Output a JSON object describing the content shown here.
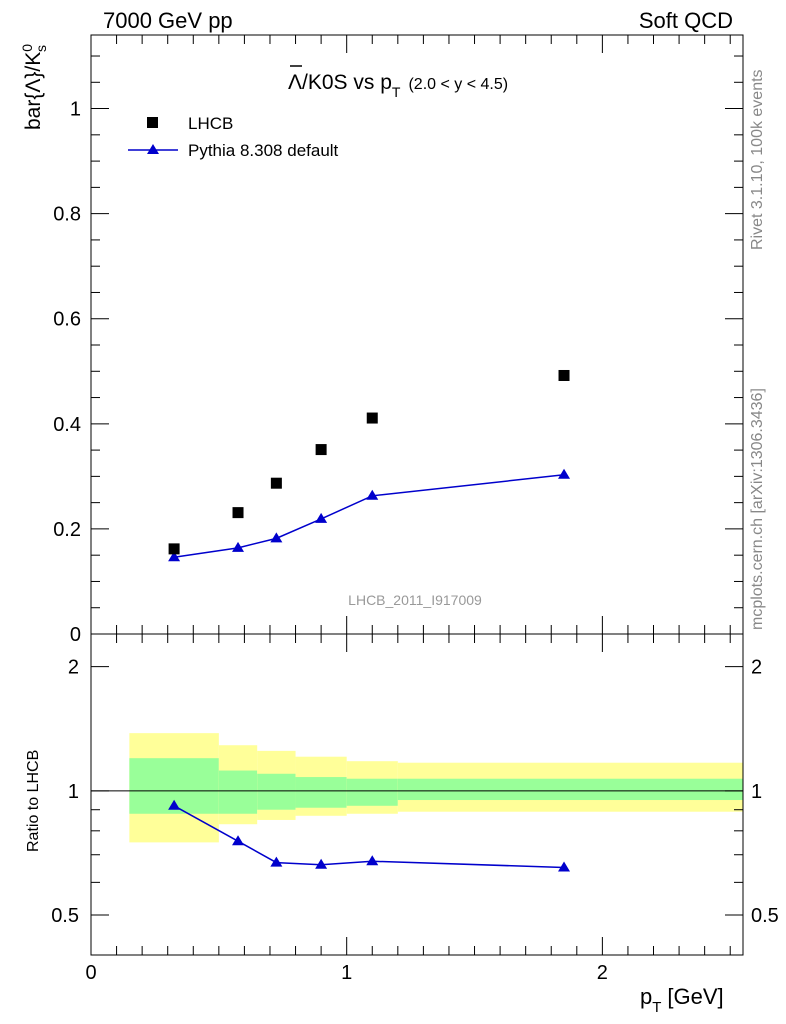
{
  "header": {
    "left": "7000 GeV pp",
    "right": "Soft QCD"
  },
  "title": {
    "main": "Λ/K0S vs p",
    "sub": "T",
    "range": "(2.0 < y < 4.5)"
  },
  "side_labels": {
    "rivet": "Rivet 3.1.10,  100k events",
    "mcplots": "mcplots.cern.ch [arXiv:1306.3436]"
  },
  "watermark": "LHCB_2011_I917009",
  "axes": {
    "ylabel_main": "bar{Λ}/K",
    "ylabel_main_sup": "0",
    "ylabel_main_sub": "s",
    "ylabel_ratio": "Ratio to LHCB",
    "xlabel": "p",
    "xlabel_sub": "T",
    "xlabel_unit": "[GeV]"
  },
  "legend": {
    "data_label": "LHCB",
    "mc_label": "Pythia 8.308 default"
  },
  "chart_data": [
    {
      "type": "scatter",
      "panel": "main",
      "x": [
        0.325,
        0.575,
        0.725,
        0.9,
        1.1,
        1.85
      ],
      "series": [
        {
          "name": "LHCB",
          "values": [
            0.162,
            0.231,
            0.287,
            0.351,
            0.411,
            0.492
          ],
          "color": "#000000",
          "marker": "square"
        },
        {
          "name": "Pythia 8.308 default",
          "values": [
            0.146,
            0.164,
            0.182,
            0.219,
            0.263,
            0.303
          ],
          "color": "#0000cc",
          "marker": "triangle"
        }
      ],
      "xlim": [
        0,
        2.55
      ],
      "ylim": [
        0,
        1.14
      ],
      "yticks": [
        0,
        0.2,
        0.4,
        0.6,
        0.8,
        1
      ],
      "yticklabels": [
        "0",
        "0.2",
        "0.4",
        "0.6",
        "0.8",
        "1"
      ],
      "legend_position": "top-left"
    },
    {
      "type": "line",
      "panel": "ratio",
      "x": [
        0.325,
        0.575,
        0.725,
        0.9,
        1.1,
        1.85
      ],
      "series": [
        {
          "name": "Pythia 8.308 default",
          "values": [
            0.92,
            0.755,
            0.67,
            0.662,
            0.675,
            0.652
          ],
          "color": "#0000cc"
        }
      ],
      "bands": {
        "bin_edges": [
          0.15,
          0.5,
          0.65,
          0.8,
          1.0,
          1.2,
          2.55
        ],
        "stat_low": [
          0.88,
          0.88,
          0.9,
          0.91,
          0.92,
          0.95
        ],
        "stat_high": [
          1.2,
          1.12,
          1.1,
          1.08,
          1.07,
          1.07
        ],
        "total_low": [
          0.75,
          0.83,
          0.85,
          0.87,
          0.88,
          0.89
        ],
        "total_high": [
          1.38,
          1.29,
          1.25,
          1.21,
          1.18,
          1.17
        ],
        "stat_color": "#99ff99",
        "total_color": "#ffff99"
      },
      "xlim": [
        0,
        2.55
      ],
      "ylim": [
        0.4,
        2.4
      ],
      "yticks": [
        0.5,
        1,
        2
      ],
      "yticklabels": [
        "0.5",
        "1",
        "2"
      ],
      "xticks": [
        0,
        1,
        2
      ],
      "xticklabels": [
        "0",
        "1",
        "2"
      ]
    }
  ]
}
